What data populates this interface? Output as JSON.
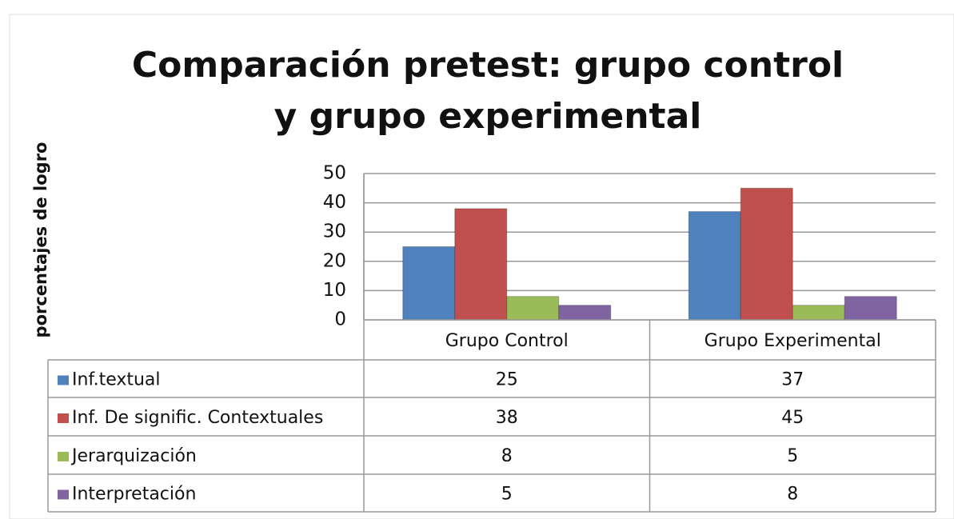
{
  "chart_data": {
    "type": "bar",
    "title": "Comparación pretest:  grupo control y grupo experimental",
    "y_label": "porcentajes de logro",
    "categories": [
      "Grupo Control",
      "Grupo Experimental"
    ],
    "series": [
      {
        "name": "Inf.textual",
        "color": "#4f81bd",
        "values": [
          25,
          37
        ]
      },
      {
        "name": "Inf. De signific. Contextuales",
        "color": "#c0504d",
        "values": [
          38,
          45
        ]
      },
      {
        "name": "Jerarquización",
        "color": "#9bbb59",
        "values": [
          8,
          5
        ]
      },
      {
        "name": "Interpretación",
        "color": "#8064a2",
        "values": [
          5,
          8
        ]
      }
    ],
    "ylim": [
      0,
      50
    ],
    "yticks": [
      0,
      10,
      20,
      30,
      40,
      50
    ],
    "grid": true,
    "data_table": true
  }
}
